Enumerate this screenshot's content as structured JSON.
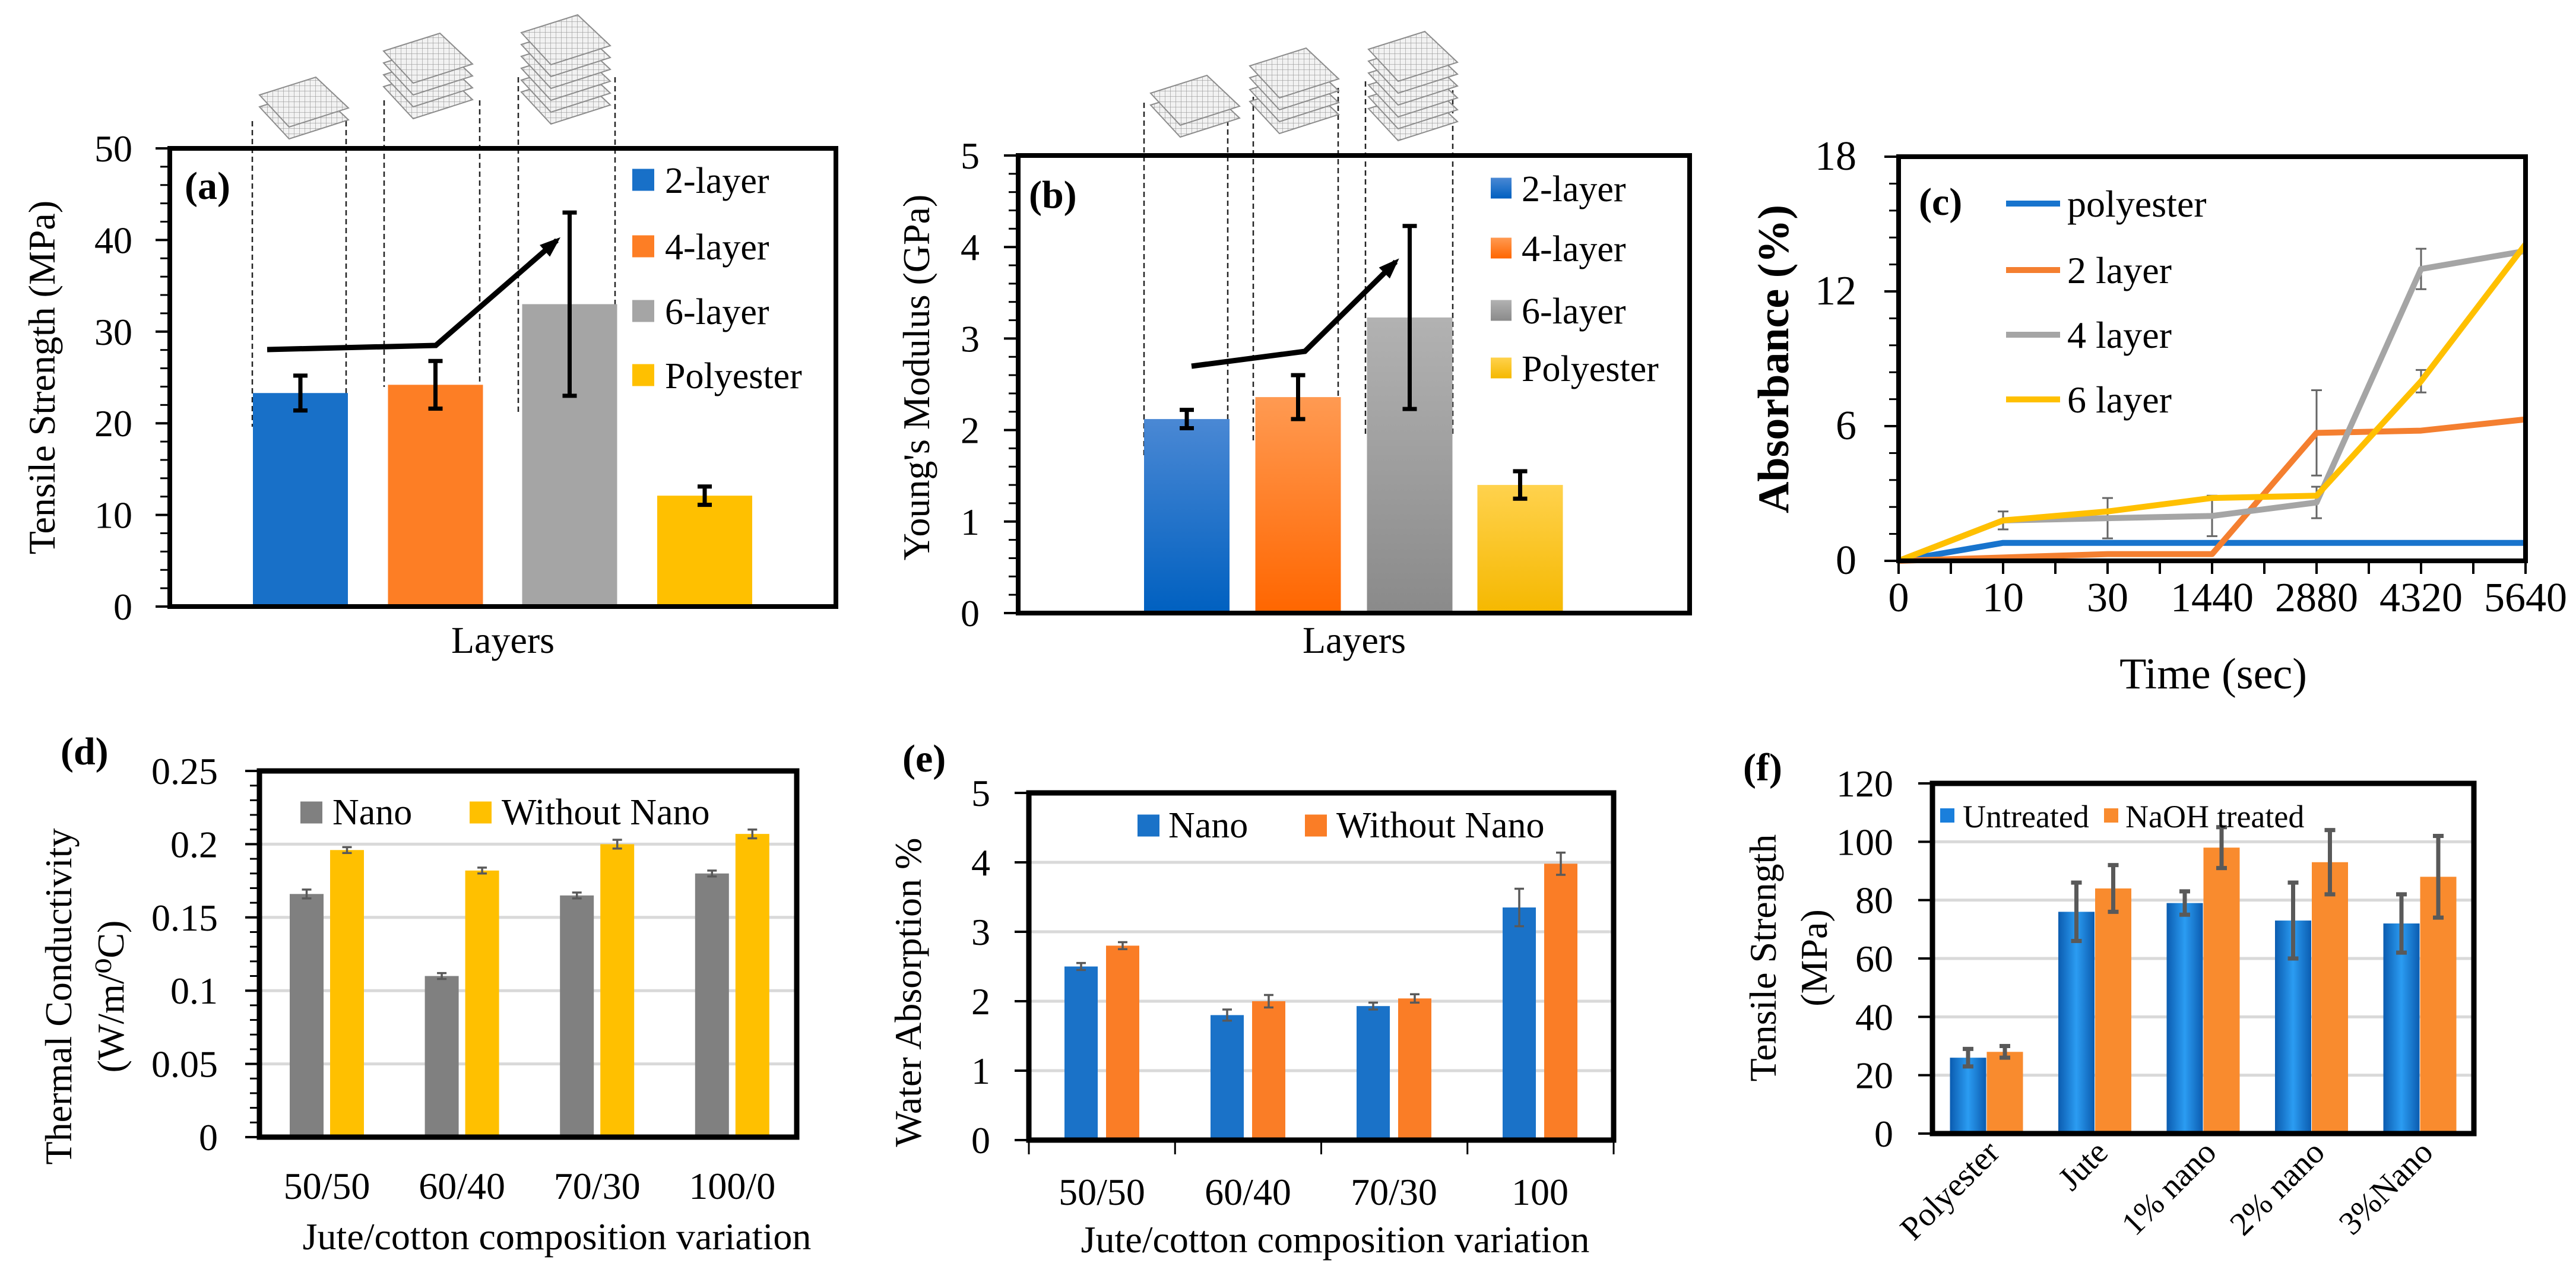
{
  "chart_data": [
    {
      "panel": "(a)",
      "type": "bar",
      "categories": [
        "2-layer",
        "4-layer",
        "6-layer",
        "Polyester"
      ],
      "values": [
        23.3,
        24.2,
        33.0,
        12.1
      ],
      "errors": [
        1.9,
        2.6,
        10.0,
        1.0
      ],
      "colors": [
        "#1870c8",
        "#fd7e25",
        "#a5a5a5",
        "#ffc000"
      ],
      "ylabel": "Tensile Strength (MPa)",
      "xlabel": "Layers",
      "ylim": [
        0,
        50
      ],
      "yticks": [
        "0",
        "10",
        "20",
        "30",
        "40",
        "50"
      ],
      "legend": "top-right",
      "grid": false
    },
    {
      "panel": "(b)",
      "type": "bar",
      "categories": [
        "2-layer",
        "4-layer",
        "6-layer",
        "Polyester"
      ],
      "values": [
        2.12,
        2.36,
        3.23,
        1.4
      ],
      "errors": [
        0.1,
        0.24,
        1.0,
        0.15
      ],
      "colors": [
        "#1a6fcf",
        "#ff7a1a",
        "#9e9e9e",
        "#ffc61a"
      ],
      "ylabel": "Young's Modulus (GPa)",
      "xlabel": "Layers",
      "ylim": [
        0,
        5
      ],
      "yticks": [
        "0",
        "1",
        "2",
        "3",
        "4",
        "5"
      ],
      "legend": "top-right",
      "grid": false
    },
    {
      "panel": "(c)",
      "type": "line",
      "x": [
        "0",
        "10",
        "30",
        "1440",
        "2880",
        "4320",
        "5640"
      ],
      "series": [
        {
          "name": "polyester",
          "color": "#1874cd",
          "values": [
            0,
            0.8,
            0.8,
            0.8,
            0.8,
            0.8,
            0.8
          ]
        },
        {
          "name": "2 layer",
          "color": "#f47f30",
          "values": [
            0,
            0.15,
            0.3,
            0.3,
            5.7,
            5.8,
            6.3
          ],
          "errors": [
            0,
            0,
            0,
            0,
            1.9,
            0,
            0
          ]
        },
        {
          "name": "4 layer",
          "color": "#a5a5a5",
          "values": [
            0,
            1.8,
            1.9,
            2.0,
            2.6,
            13.0,
            13.8
          ],
          "errors": [
            0,
            0.4,
            0.9,
            0.9,
            0.7,
            0.9,
            0
          ]
        },
        {
          "name": "6 layer",
          "color": "#ffc000",
          "values": [
            0,
            1.8,
            2.2,
            2.8,
            2.9,
            8.0,
            14.1
          ],
          "errors": [
            0,
            0,
            0,
            0,
            0,
            0.5,
            0
          ]
        }
      ],
      "ylabel": "Absorbance (%)",
      "xlabel": "Time (sec)",
      "ylim": [
        0,
        18
      ],
      "yticks": [
        "0",
        "6",
        "12",
        "18"
      ],
      "legend": "top-left",
      "grid": false
    },
    {
      "panel": "(d)",
      "type": "bar",
      "categories": [
        "50/50",
        "60/40",
        "70/30",
        "100/0"
      ],
      "series": [
        {
          "name": "Nano",
          "color": "#808080",
          "values": [
            0.166,
            0.11,
            0.165,
            0.18
          ],
          "errors": [
            0.003,
            0.002,
            0.002,
            0.002
          ]
        },
        {
          "name": "Without Nano",
          "color": "#ffc000",
          "values": [
            0.196,
            0.182,
            0.2,
            0.207
          ],
          "errors": [
            0.002,
            0.002,
            0.003,
            0.003
          ]
        }
      ],
      "ylabel": "Thermal Conductivity",
      "ylabel2": "(W/m/⁰C)",
      "xlabel": "Jute/cotton composition variation",
      "ylim": [
        0,
        0.25
      ],
      "yticks": [
        "0",
        "0.05",
        "0.1",
        "0.15",
        "0.2",
        "0.25"
      ],
      "legend": "top",
      "grid": true
    },
    {
      "panel": "(e)",
      "type": "bar",
      "categories": [
        "50/50",
        "60/40",
        "70/30",
        "100"
      ],
      "series": [
        {
          "name": "Nano",
          "color": "#1a72c8",
          "values": [
            2.5,
            1.8,
            1.93,
            3.35
          ],
          "errors": [
            0.05,
            0.08,
            0.05,
            0.27
          ]
        },
        {
          "name": "Without Nano",
          "color": "#fa7d26",
          "values": [
            2.8,
            2.0,
            2.04,
            3.98
          ],
          "errors": [
            0.05,
            0.09,
            0.06,
            0.16
          ]
        }
      ],
      "ylabel": "Water Absorption %",
      "xlabel": "Jute/cotton composition variation",
      "ylim": [
        0,
        5
      ],
      "yticks": [
        "0",
        "1",
        "2",
        "3",
        "4",
        "5"
      ],
      "legend": "top-right",
      "grid": true
    },
    {
      "panel": "(f)",
      "type": "bar",
      "categories": [
        "Polyester",
        "Jute",
        "1% nano",
        "2% nano",
        "3%Nano"
      ],
      "series": [
        {
          "name": "Untreated",
          "color": "#1a7fdc",
          "values": [
            26,
            76,
            79,
            73,
            72
          ],
          "errors": [
            3,
            10,
            4,
            13,
            10
          ]
        },
        {
          "name": "NaOH treated",
          "color": "#f98b2e",
          "values": [
            28,
            84,
            98,
            93,
            88
          ],
          "errors": [
            2,
            8,
            7,
            11,
            14
          ]
        }
      ],
      "ylabel": "Tensile Strength",
      "ylabel2": "(MPa)",
      "xlabel": "",
      "ylim": [
        0,
        120
      ],
      "yticks": [
        "0",
        "20",
        "40",
        "60",
        "80",
        "100",
        "120"
      ],
      "legend": "top",
      "grid": true
    }
  ]
}
